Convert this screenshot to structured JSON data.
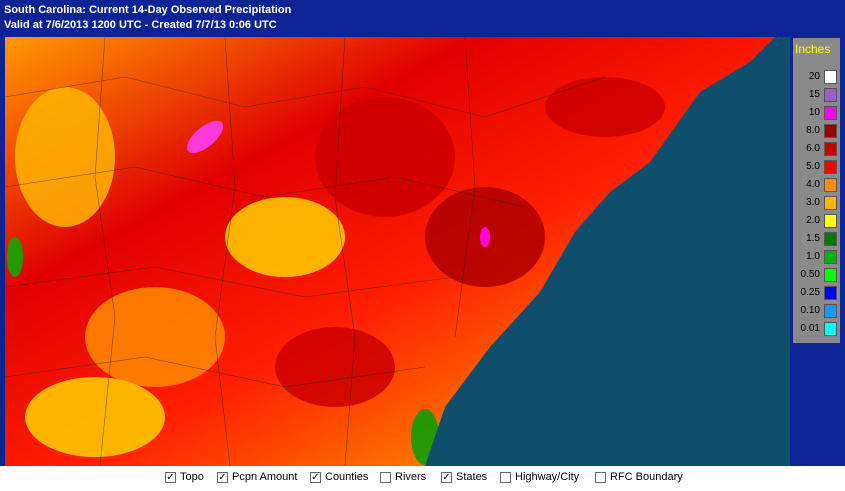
{
  "header": {
    "title": "South Carolina: Current 14-Day Observed Precipitation",
    "subtitle": "Valid at 7/6/2013 1200 UTC - Created 7/7/13 0:06 UTC"
  },
  "legend": {
    "title": "Inches",
    "items": [
      {
        "label": "20",
        "color": "#ffffff"
      },
      {
        "label": "15",
        "color": "#9c5fc8"
      },
      {
        "label": "10",
        "color": "#ff00ff"
      },
      {
        "label": "8.0",
        "color": "#9e0000"
      },
      {
        "label": "6.0",
        "color": "#cc0000"
      },
      {
        "label": "5.0",
        "color": "#ff0000"
      },
      {
        "label": "4.0",
        "color": "#ff8c00"
      },
      {
        "label": "3.0",
        "color": "#ffb400"
      },
      {
        "label": "2.0",
        "color": "#ffff00"
      },
      {
        "label": "1.5",
        "color": "#007800"
      },
      {
        "label": "1.0",
        "color": "#00b400"
      },
      {
        "label": "0.50",
        "color": "#00ff00"
      },
      {
        "label": "0.25",
        "color": "#0000ff"
      },
      {
        "label": "0.10",
        "color": "#1e96ff"
      },
      {
        "label": "0.01",
        "color": "#00ffff"
      }
    ]
  },
  "layers": [
    {
      "label": "Topo",
      "checked": true
    },
    {
      "label": "Pcpn Amount",
      "checked": true
    },
    {
      "label": "Counties",
      "checked": true
    },
    {
      "label": "Rivers",
      "checked": false
    },
    {
      "label": "States",
      "checked": true
    },
    {
      "label": "Highway/City",
      "checked": false
    },
    {
      "label": "RFC Boundary",
      "checked": false
    }
  ]
}
